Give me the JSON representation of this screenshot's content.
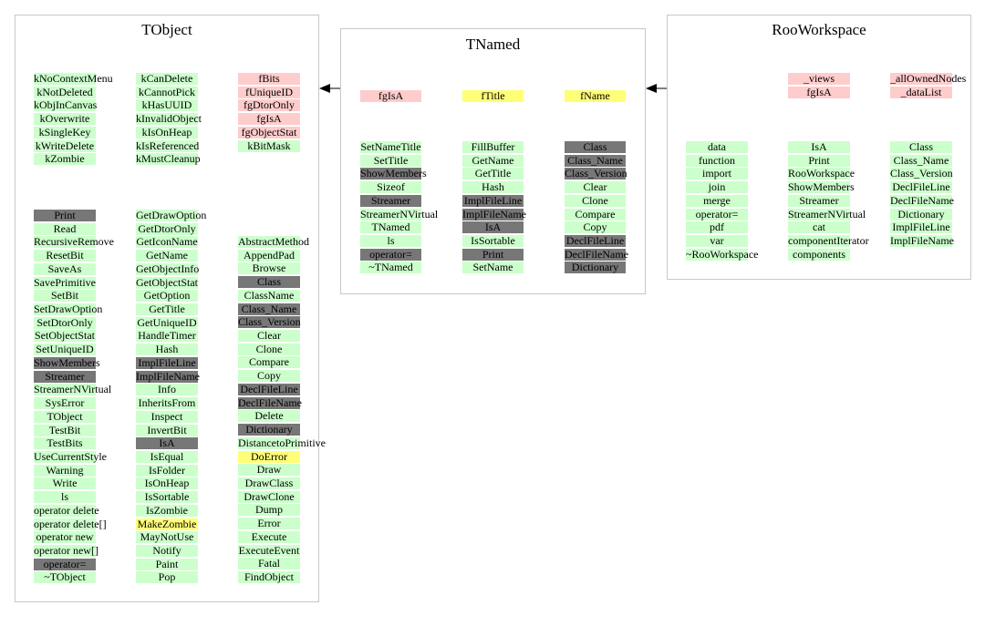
{
  "colors": {
    "green": "#ccffcc",
    "gray": "#777777",
    "pink": "#ffcccc",
    "yellow": "#ffff77",
    "border": "#c8c8c8"
  },
  "panels": {
    "tobject": {
      "title": "TObject",
      "enums": [
        [
          {
            "t": "kNoContextMenu",
            "c": "g"
          },
          {
            "t": "kNotDeleted",
            "c": "g"
          },
          {
            "t": "kObjInCanvas",
            "c": "g"
          },
          {
            "t": "kOverwrite",
            "c": "g"
          },
          {
            "t": "kSingleKey",
            "c": "g"
          },
          {
            "t": "kWriteDelete",
            "c": "g"
          },
          {
            "t": "kZombie",
            "c": "g"
          }
        ],
        [
          {
            "t": "kCanDelete",
            "c": "g"
          },
          {
            "t": "kCannotPick",
            "c": "g"
          },
          {
            "t": "kHasUUID",
            "c": "g"
          },
          {
            "t": "kInvalidObject",
            "c": "g"
          },
          {
            "t": "kIsOnHeap",
            "c": "g"
          },
          {
            "t": "kIsReferenced",
            "c": "g"
          },
          {
            "t": "kMustCleanup",
            "c": "g"
          }
        ],
        [
          {
            "t": "fBits",
            "c": "p"
          },
          {
            "t": "fUniqueID",
            "c": "p"
          },
          {
            "t": "fgDtorOnly",
            "c": "p"
          },
          {
            "t": "fgIsA",
            "c": "p"
          },
          {
            "t": "fgObjectStat",
            "c": "p"
          },
          {
            "t": "kBitMask",
            "c": "g"
          }
        ]
      ],
      "methods": [
        [
          {
            "t": "Print",
            "c": "d"
          },
          {
            "t": "Read",
            "c": "g"
          },
          {
            "t": "RecursiveRemove",
            "c": "g"
          },
          {
            "t": "ResetBit",
            "c": "g"
          },
          {
            "t": "SaveAs",
            "c": "g"
          },
          {
            "t": "SavePrimitive",
            "c": "g"
          },
          {
            "t": "SetBit",
            "c": "g"
          },
          {
            "t": "SetDrawOption",
            "c": "g"
          },
          {
            "t": "SetDtorOnly",
            "c": "g"
          },
          {
            "t": "SetObjectStat",
            "c": "g"
          },
          {
            "t": "SetUniqueID",
            "c": "g"
          },
          {
            "t": "ShowMembers",
            "c": "d"
          },
          {
            "t": "Streamer",
            "c": "d"
          },
          {
            "t": "StreamerNVirtual",
            "c": "g"
          },
          {
            "t": "SysError",
            "c": "g"
          },
          {
            "t": "TObject",
            "c": "g"
          },
          {
            "t": "TestBit",
            "c": "g"
          },
          {
            "t": "TestBits",
            "c": "g"
          },
          {
            "t": "UseCurrentStyle",
            "c": "g"
          },
          {
            "t": "Warning",
            "c": "g"
          },
          {
            "t": "Write",
            "c": "g"
          },
          {
            "t": "ls",
            "c": "g"
          },
          {
            "t": "operator delete",
            "c": "g"
          },
          {
            "t": "operator delete[]",
            "c": "g"
          },
          {
            "t": "operator new",
            "c": "g"
          },
          {
            "t": "operator new[]",
            "c": "g"
          },
          {
            "t": "operator=",
            "c": "d"
          },
          {
            "t": "~TObject",
            "c": "g"
          }
        ],
        [
          {
            "t": "GetDrawOption",
            "c": "g"
          },
          {
            "t": "GetDtorOnly",
            "c": "g"
          },
          {
            "t": "GetIconName",
            "c": "g"
          },
          {
            "t": "GetName",
            "c": "g"
          },
          {
            "t": "GetObjectInfo",
            "c": "g"
          },
          {
            "t": "GetObjectStat",
            "c": "g"
          },
          {
            "t": "GetOption",
            "c": "g"
          },
          {
            "t": "GetTitle",
            "c": "g"
          },
          {
            "t": "GetUniqueID",
            "c": "g"
          },
          {
            "t": "HandleTimer",
            "c": "g"
          },
          {
            "t": "Hash",
            "c": "g"
          },
          {
            "t": "ImplFileLine",
            "c": "d"
          },
          {
            "t": "ImplFileName",
            "c": "d"
          },
          {
            "t": "Info",
            "c": "g"
          },
          {
            "t": "InheritsFrom",
            "c": "g"
          },
          {
            "t": "Inspect",
            "c": "g"
          },
          {
            "t": "InvertBit",
            "c": "g"
          },
          {
            "t": "IsA",
            "c": "d"
          },
          {
            "t": "IsEqual",
            "c": "g"
          },
          {
            "t": "IsFolder",
            "c": "g"
          },
          {
            "t": "IsOnHeap",
            "c": "g"
          },
          {
            "t": "IsSortable",
            "c": "g"
          },
          {
            "t": "IsZombie",
            "c": "g"
          },
          {
            "t": "MakeZombie",
            "c": "y"
          },
          {
            "t": "MayNotUse",
            "c": "g"
          },
          {
            "t": "Notify",
            "c": "g"
          },
          {
            "t": "Paint",
            "c": "g"
          },
          {
            "t": "Pop",
            "c": "g"
          }
        ],
        [
          {
            "t": "AbstractMethod",
            "c": "g"
          },
          {
            "t": "AppendPad",
            "c": "g"
          },
          {
            "t": "Browse",
            "c": "g"
          },
          {
            "t": "Class",
            "c": "d"
          },
          {
            "t": "ClassName",
            "c": "g"
          },
          {
            "t": "Class_Name",
            "c": "d"
          },
          {
            "t": "Class_Version",
            "c": "d"
          },
          {
            "t": "Clear",
            "c": "g"
          },
          {
            "t": "Clone",
            "c": "g"
          },
          {
            "t": "Compare",
            "c": "g"
          },
          {
            "t": "Copy",
            "c": "g"
          },
          {
            "t": "DeclFileLine",
            "c": "d"
          },
          {
            "t": "DeclFileName",
            "c": "d"
          },
          {
            "t": "Delete",
            "c": "g"
          },
          {
            "t": "Dictionary",
            "c": "d"
          },
          {
            "t": "DistancetoPrimitive",
            "c": "g"
          },
          {
            "t": "DoError",
            "c": "y"
          },
          {
            "t": "Draw",
            "c": "g"
          },
          {
            "t": "DrawClass",
            "c": "g"
          },
          {
            "t": "DrawClone",
            "c": "g"
          },
          {
            "t": "Dump",
            "c": "g"
          },
          {
            "t": "Error",
            "c": "g"
          },
          {
            "t": "Execute",
            "c": "g"
          },
          {
            "t": "ExecuteEvent",
            "c": "g"
          },
          {
            "t": "Fatal",
            "c": "g"
          },
          {
            "t": "FindObject",
            "c": "g"
          }
        ]
      ]
    },
    "tnamed": {
      "title": "TNamed",
      "members": [
        {
          "t": "fgIsA",
          "c": "p"
        },
        {
          "t": "fTitle",
          "c": "y"
        },
        {
          "t": "fName",
          "c": "y"
        }
      ],
      "methods": [
        [
          {
            "t": "SetNameTitle",
            "c": "g"
          },
          {
            "t": "SetTitle",
            "c": "g"
          },
          {
            "t": "ShowMembers",
            "c": "d"
          },
          {
            "t": "Sizeof",
            "c": "g"
          },
          {
            "t": "Streamer",
            "c": "d"
          },
          {
            "t": "StreamerNVirtual",
            "c": "g"
          },
          {
            "t": "TNamed",
            "c": "g"
          },
          {
            "t": "ls",
            "c": "g"
          },
          {
            "t": "operator=",
            "c": "d"
          },
          {
            "t": "~TNamed",
            "c": "g"
          }
        ],
        [
          {
            "t": "FillBuffer",
            "c": "g"
          },
          {
            "t": "GetName",
            "c": "g"
          },
          {
            "t": "GetTitle",
            "c": "g"
          },
          {
            "t": "Hash",
            "c": "g"
          },
          {
            "t": "ImplFileLine",
            "c": "d"
          },
          {
            "t": "ImplFileName",
            "c": "d"
          },
          {
            "t": "IsA",
            "c": "d"
          },
          {
            "t": "IsSortable",
            "c": "g"
          },
          {
            "t": "Print",
            "c": "d"
          },
          {
            "t": "SetName",
            "c": "g"
          }
        ],
        [
          {
            "t": "Class",
            "c": "d"
          },
          {
            "t": "Class_Name",
            "c": "d"
          },
          {
            "t": "Class_Version",
            "c": "d"
          },
          {
            "t": "Clear",
            "c": "g"
          },
          {
            "t": "Clone",
            "c": "g"
          },
          {
            "t": "Compare",
            "c": "g"
          },
          {
            "t": "Copy",
            "c": "g"
          },
          {
            "t": "DeclFileLine",
            "c": "d"
          },
          {
            "t": "DeclFileName",
            "c": "d"
          },
          {
            "t": "Dictionary",
            "c": "d"
          }
        ]
      ]
    },
    "rooworkspace": {
      "title": "RooWorkspace",
      "members": [
        [
          {
            "t": "_views",
            "c": "p"
          },
          {
            "t": "fgIsA",
            "c": "p"
          }
        ],
        [
          {
            "t": "_allOwnedNodes",
            "c": "p"
          },
          {
            "t": "_dataList",
            "c": "p"
          }
        ]
      ],
      "methods": [
        [
          {
            "t": "data",
            "c": "g"
          },
          {
            "t": "function",
            "c": "g"
          },
          {
            "t": "import",
            "c": "g"
          },
          {
            "t": "join",
            "c": "g"
          },
          {
            "t": "merge",
            "c": "g"
          },
          {
            "t": "operator=",
            "c": "g"
          },
          {
            "t": "pdf",
            "c": "g"
          },
          {
            "t": "var",
            "c": "g"
          },
          {
            "t": "~RooWorkspace",
            "c": "g"
          }
        ],
        [
          {
            "t": "IsA",
            "c": "g"
          },
          {
            "t": "Print",
            "c": "g"
          },
          {
            "t": "RooWorkspace",
            "c": "g"
          },
          {
            "t": "ShowMembers",
            "c": "g"
          },
          {
            "t": "Streamer",
            "c": "g"
          },
          {
            "t": "StreamerNVirtual",
            "c": "g"
          },
          {
            "t": "cat",
            "c": "g"
          },
          {
            "t": "componentIterator",
            "c": "g"
          },
          {
            "t": "components",
            "c": "g"
          }
        ],
        [
          {
            "t": "Class",
            "c": "g"
          },
          {
            "t": "Class_Name",
            "c": "g"
          },
          {
            "t": "Class_Version",
            "c": "g"
          },
          {
            "t": "DeclFileLine",
            "c": "g"
          },
          {
            "t": "DeclFileName",
            "c": "g"
          },
          {
            "t": "Dictionary",
            "c": "g"
          },
          {
            "t": "ImplFileLine",
            "c": "g"
          },
          {
            "t": "ImplFileName",
            "c": "g"
          }
        ]
      ]
    }
  }
}
